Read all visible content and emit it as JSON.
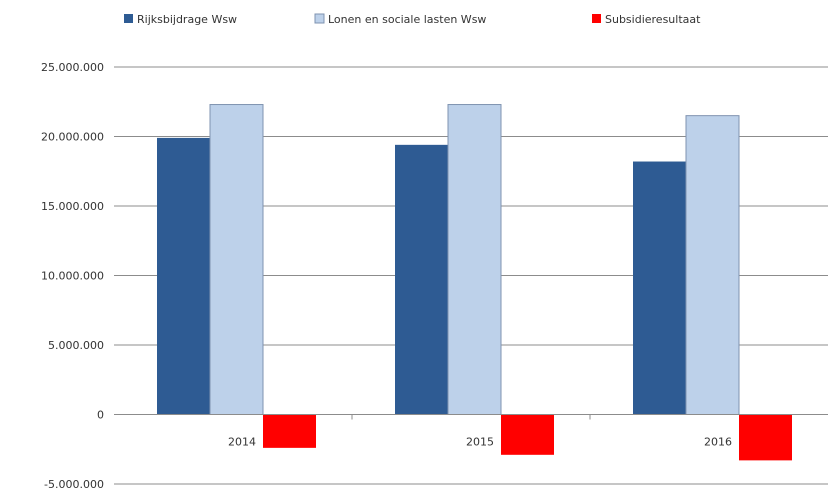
{
  "chart_data": {
    "type": "bar",
    "categories": [
      "2014",
      "2015",
      "2016"
    ],
    "series": [
      {
        "name": "Rijksbijdrage Wsw",
        "color": "#2E5B93",
        "values": [
          19900000,
          19400000,
          18200000
        ]
      },
      {
        "name": "Lonen en sociale lasten Wsw",
        "color": "#BDD1EA",
        "values": [
          22300000,
          22300000,
          21500000
        ]
      },
      {
        "name": "Subsidieresultaat",
        "color": "#FF0000",
        "values": [
          -2400000,
          -2900000,
          -3300000
        ]
      }
    ],
    "y_ticks": [
      "25.000.000",
      "20.000.000",
      "15.000.000",
      "10.000.000",
      "5.000.000",
      "0",
      "-5.000.000"
    ],
    "y_tick_values": [
      25000000,
      20000000,
      15000000,
      10000000,
      5000000,
      0,
      -5000000
    ],
    "ylim": [
      -5000000,
      25000000
    ],
    "grid": true,
    "legend_position": "top",
    "title": "",
    "xlabel": "",
    "ylabel": ""
  }
}
